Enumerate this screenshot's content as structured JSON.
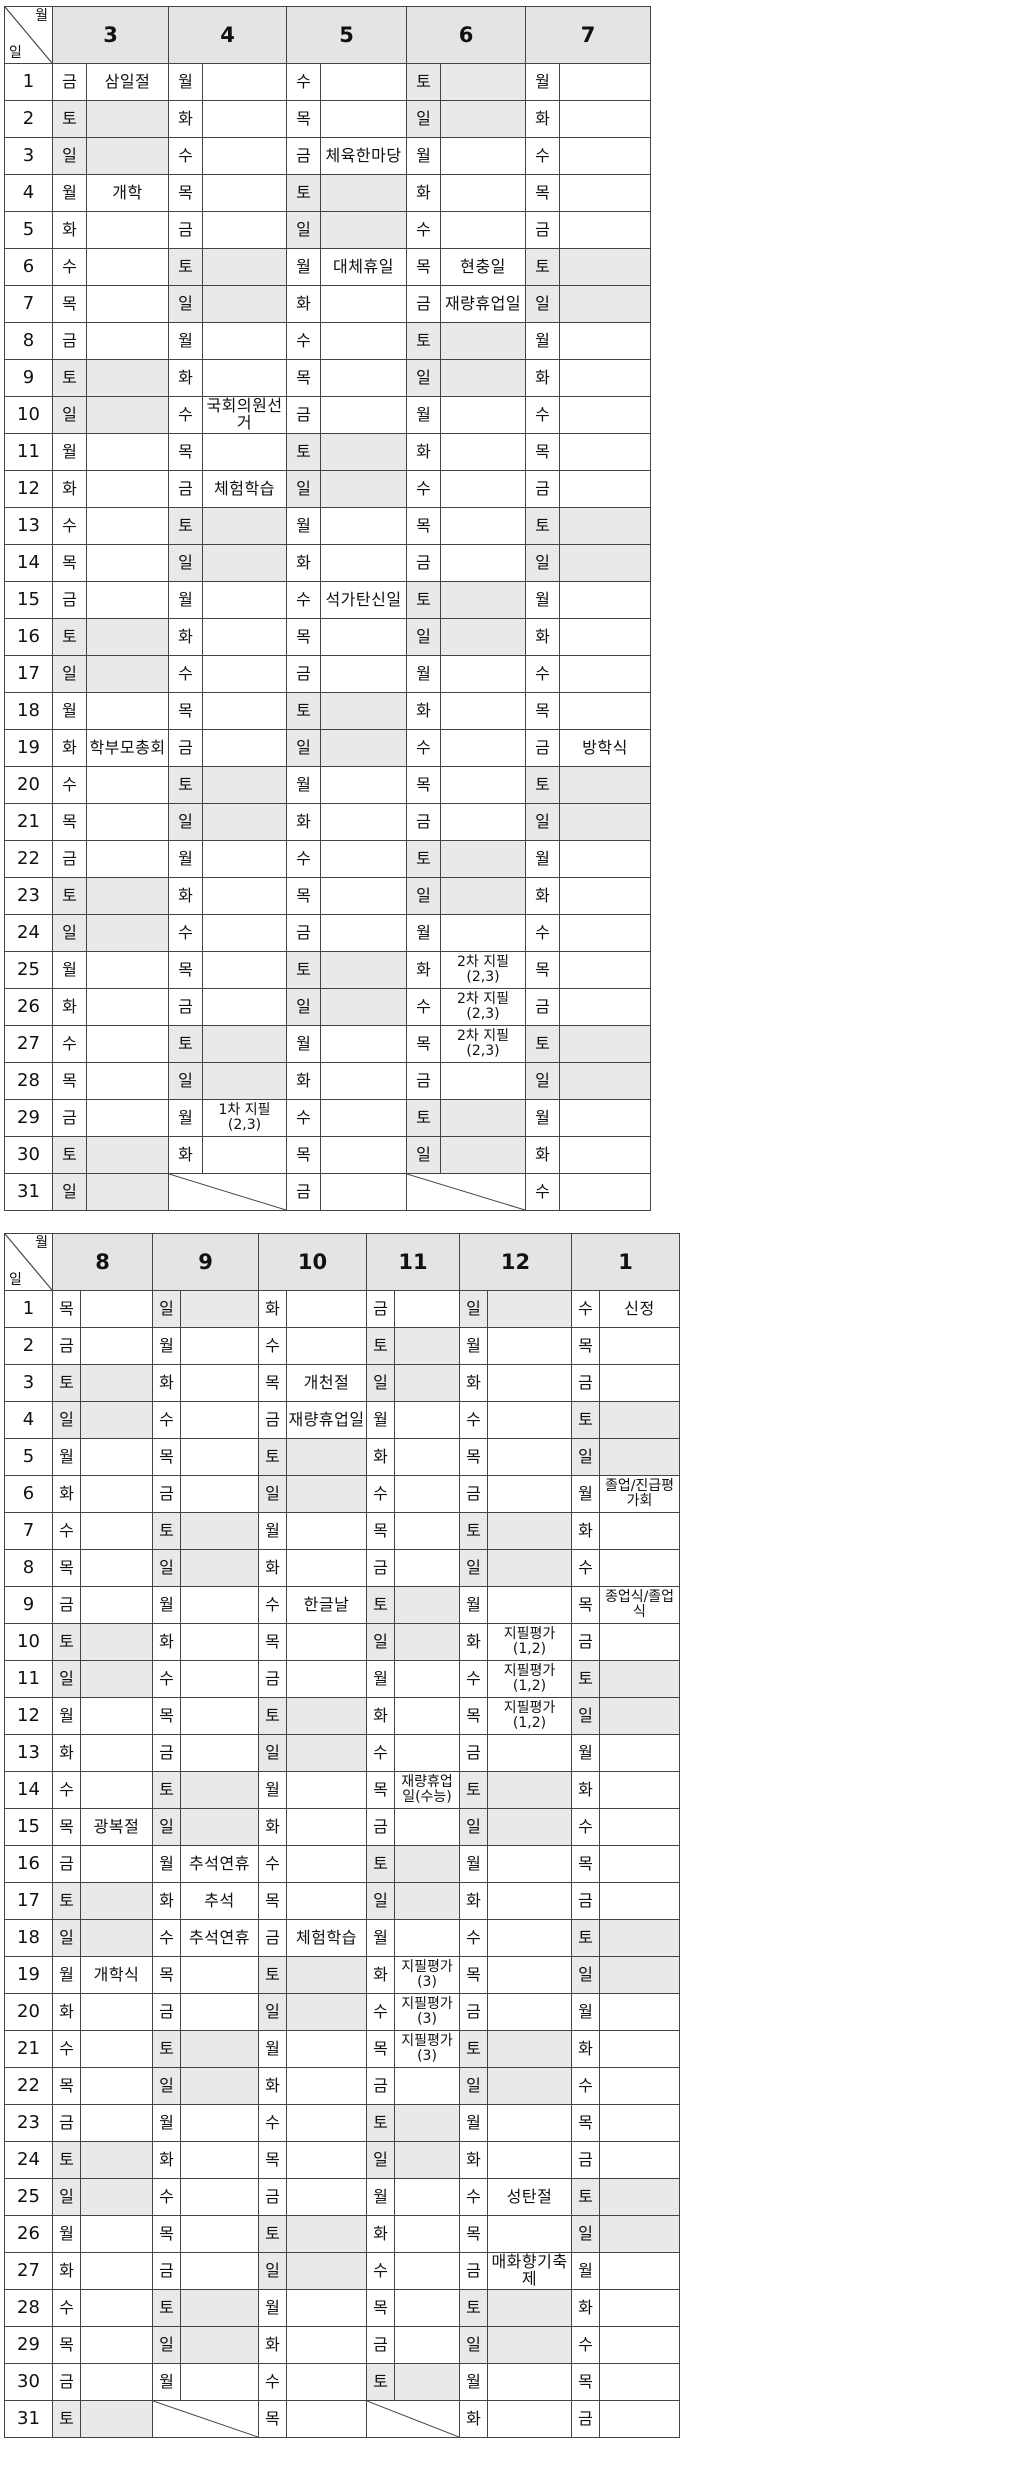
{
  "corner": {
    "month_label": "월",
    "day_label": "일"
  },
  "table1": {
    "months": [
      "3",
      "4",
      "5",
      "6",
      "7"
    ],
    "month_lengths": [
      31,
      30,
      31,
      30,
      31
    ],
    "start_weekday": [
      5,
      1,
      3,
      6,
      1
    ],
    "events": {
      "3": {
        "1": "삼일절",
        "4": "개학",
        "19": "학부모총회"
      },
      "4": {
        "10": "국회의원선거",
        "12": "체험학습",
        "29": "1차 지필(2,3)"
      },
      "5": {
        "3": "체육한마당",
        "6": "대체휴일",
        "15": "석가탄신일"
      },
      "6": {
        "6": "현충일",
        "7": "재량휴업일",
        "25": "2차 지필(2,3)",
        "26": "2차 지필(2,3)",
        "27": "2차 지필(2,3)"
      },
      "7": {
        "19": "방학식"
      }
    }
  },
  "table2": {
    "months": [
      "8",
      "9",
      "10",
      "11",
      "12",
      "1"
    ],
    "month_lengths": [
      31,
      30,
      31,
      30,
      31,
      31
    ],
    "start_weekday": [
      4,
      0,
      2,
      5,
      0,
      3
    ],
    "events": {
      "8": {
        "15": "광복절",
        "19": "개학식"
      },
      "9": {
        "16": "추석연휴",
        "17": "추석",
        "18": "추석연휴"
      },
      "10": {
        "3": "개천절",
        "4": "재량휴업일",
        "9": "한글날",
        "18": "체험학습"
      },
      "11": {
        "14": "재량휴업일(수능)",
        "19": "지필평가(3)",
        "20": "지필평가(3)",
        "21": "지필평가(3)"
      },
      "12": {
        "10": "지필평가(1,2)",
        "11": "지필평가(1,2)",
        "12": "지필평가(1,2)",
        "25": "성탄절",
        "27": "매화향기축제"
      },
      "1": {
        "1": "신정",
        "6": "졸업/진급평가회",
        "9": "종업식/졸업식"
      }
    }
  },
  "weekday_names": [
    "일",
    "월",
    "화",
    "수",
    "목",
    "금",
    "토"
  ],
  "colors": {
    "weekend_fill": "#e9e9e9",
    "header_fill": "#e4e4e4",
    "border": "#444444"
  }
}
